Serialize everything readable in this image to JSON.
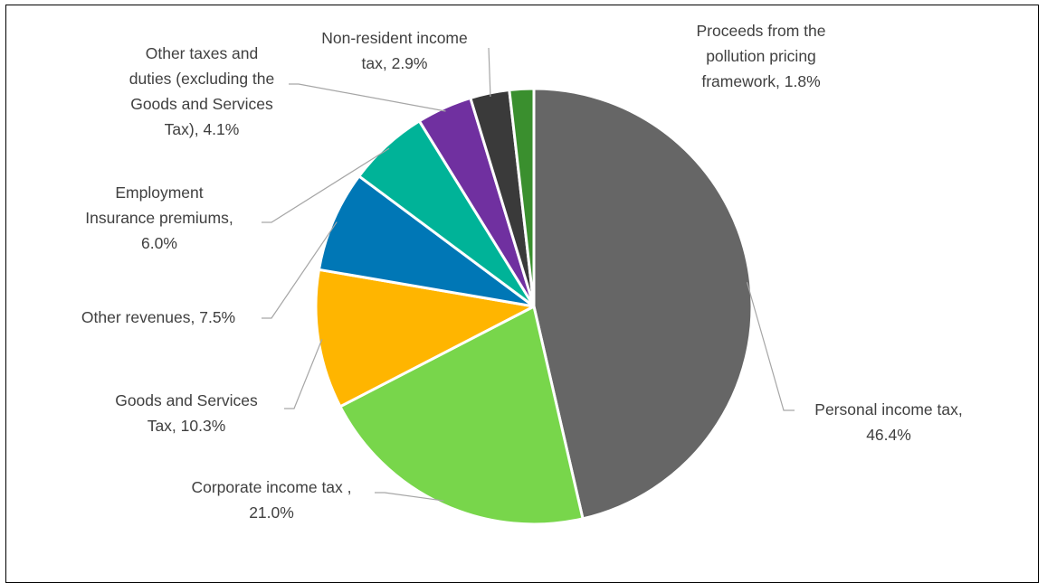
{
  "chart_data": {
    "type": "pie",
    "categories": [
      "Personal income tax",
      "Corporate income tax",
      "Goods and Services Tax",
      "Other revenues",
      "Employment Insurance premiums",
      "Other taxes and duties (excluding the Goods and Services Tax)",
      "Non-resident income tax",
      "Proceeds from the pollution pricing framework"
    ],
    "values": [
      46.4,
      21.0,
      10.3,
      7.5,
      6.0,
      4.1,
      2.9,
      1.8
    ],
    "colors": [
      "#666666",
      "#78d64b",
      "#ffb500",
      "#0077b6",
      "#00b398",
      "#7030a0",
      "#3a3a3a",
      "#3a8f2e"
    ],
    "data_labels": [
      [
        "Personal income tax,",
        "46.4%"
      ],
      [
        "Corporate income tax ,",
        "21.0%"
      ],
      [
        "Goods and Services",
        "Tax, 10.3%"
      ],
      [
        "Other revenues, 7.5%"
      ],
      [
        "Employment",
        "Insurance premiums,",
        "6.0%"
      ],
      [
        "Other taxes and",
        "duties (excluding the",
        "Goods and Services",
        "Tax), 4.1%"
      ],
      [
        "Non-resident income",
        "tax, 2.9%"
      ],
      [
        "Proceeds from the",
        "pollution pricing",
        "framework, 1.8%"
      ]
    ],
    "legend": "none"
  }
}
